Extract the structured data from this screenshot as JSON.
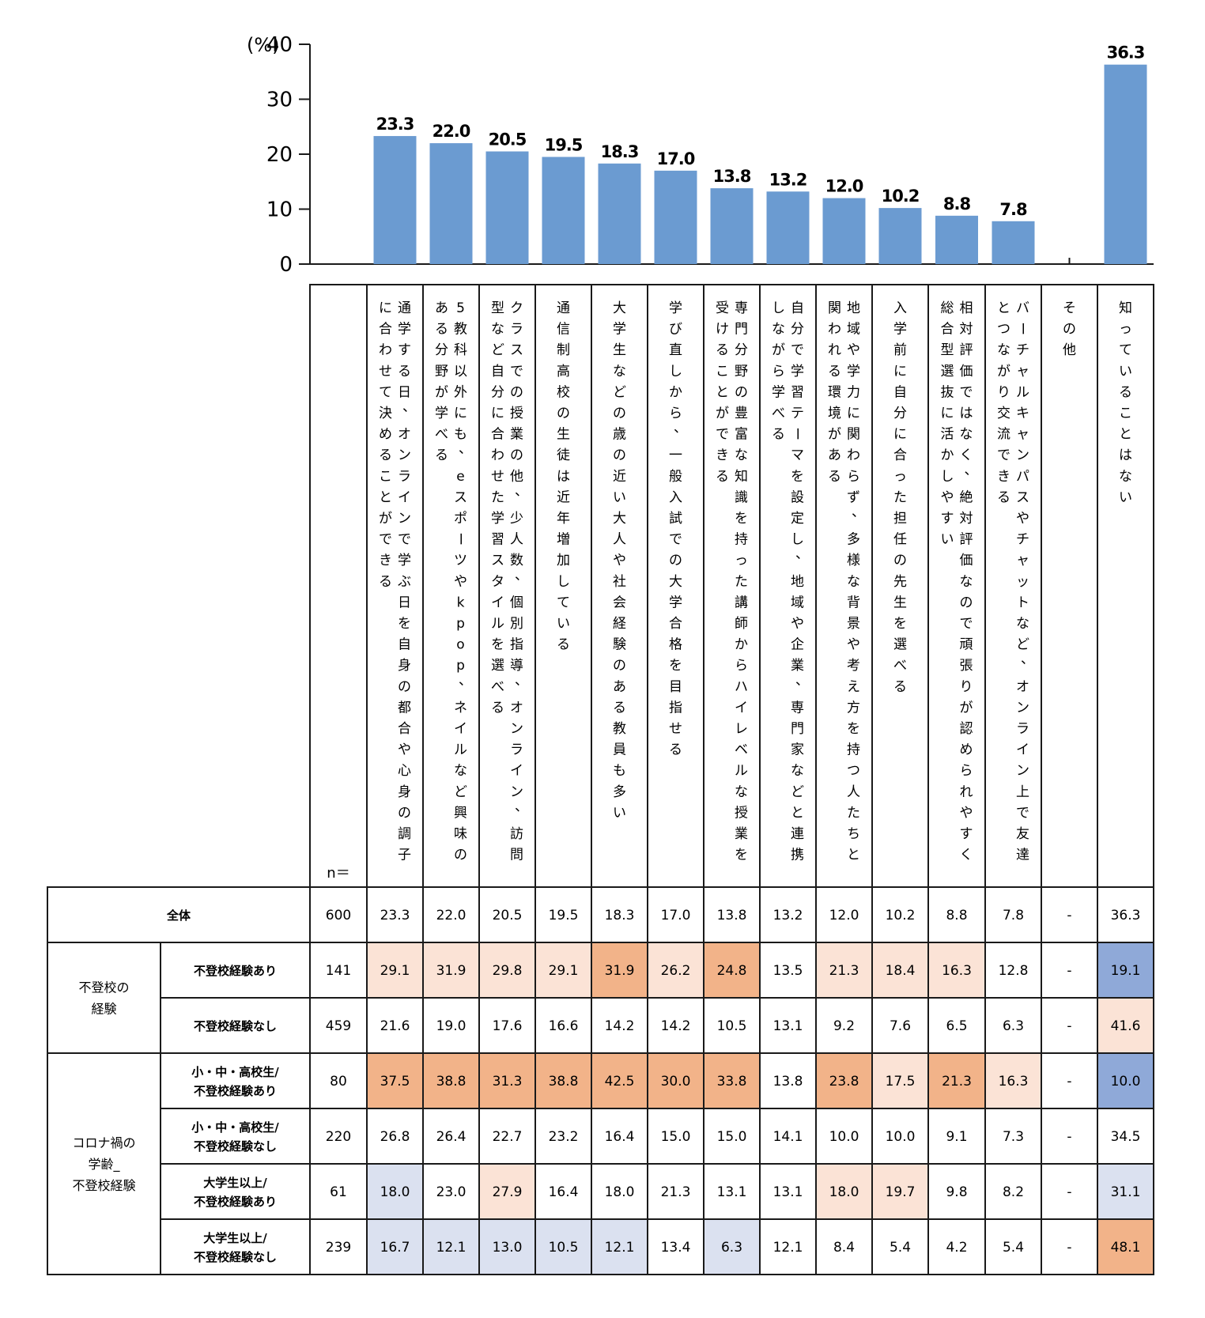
{
  "chart_data": {
    "type": "bar",
    "y_unit_label": "(%)",
    "y_ticks": [
      "0",
      "10",
      "20",
      "30",
      "40"
    ],
    "ylim": [
      0,
      40
    ],
    "grid": false,
    "categories": [
      "通学する日、オンラインで学ぶ日を自身の都合や心身の調子に合わせて決めることができる",
      "5教科以外にも、eスポーツやkpop、ネイルなど興味のある分野が学べる",
      "クラスでの授業の他、少人数、個別指導、オンライン、訪問型など自分に合わせた学習スタイルを選べる",
      "通信制高校の生徒は近年増加している",
      "大学生などの歳の近い大人や社会経験のある教員も多い",
      "学び直しから、一般入試での大学合格を目指せる",
      "専門分野の豊富な知識を持った講師からハイレベルな授業を受けることができる",
      "自分で学習テーマを設定し、地域や企業、専門家などと連携しながら学べる",
      "地域や学力に関わらず、多様な背景や考え方を持つ人たちと関われる環境がある",
      "入学前に自分に合った担任の先生を選べる",
      "相対評価ではなく、絶対評価なので頑張りが認められやすく総合型選抜に活かしやすい",
      "バーチャルキャンパスやチャットなど、オンライン上で友達とつながり交流できる",
      "その他",
      "知っていることはない"
    ],
    "values": [
      23.3,
      22.0,
      20.5,
      19.5,
      18.3,
      17.0,
      13.8,
      13.2,
      12.0,
      10.2,
      8.8,
      7.8,
      null,
      36.3
    ],
    "value_labels": [
      "23.3",
      "22.0",
      "20.5",
      "19.5",
      "18.3",
      "17.0",
      "13.8",
      "13.2",
      "12.0",
      "10.2",
      "8.8",
      "7.8",
      "",
      "36.3"
    ],
    "bar_color": "#6b9bd1",
    "table": {
      "n_header": "n＝",
      "groups": [
        {
          "label": "",
          "rows": [
            0
          ]
        },
        {
          "label": "不登校の\n経験",
          "rows": [
            1,
            2
          ]
        },
        {
          "label": "コロナ禍の\n学齢_\n不登校経験",
          "rows": [
            3,
            4,
            5,
            6
          ]
        }
      ],
      "rows": [
        {
          "label": "全体",
          "n": "600",
          "values": [
            "23.3",
            "22.0",
            "20.5",
            "19.5",
            "18.3",
            "17.0",
            "13.8",
            "13.2",
            "12.0",
            "10.2",
            "8.8",
            "7.8",
            "-",
            "36.3"
          ],
          "shade": [
            "",
            "",
            "",
            "",
            "",
            "",
            "",
            "",
            "",
            "",
            "",
            "",
            "",
            ""
          ]
        },
        {
          "label": "不登校経験あり",
          "n": "141",
          "values": [
            "29.1",
            "31.9",
            "29.8",
            "29.1",
            "31.9",
            "26.2",
            "24.8",
            "13.5",
            "21.3",
            "18.4",
            "16.3",
            "12.8",
            "-",
            "19.1"
          ],
          "shade": [
            "lo",
            "lo",
            "lo",
            "lo",
            "ho",
            "lo",
            "ho",
            "",
            "lo",
            "lo",
            "lo",
            "",
            "",
            "hb"
          ]
        },
        {
          "label": "不登校経験なし",
          "n": "459",
          "values": [
            "21.6",
            "19.0",
            "17.6",
            "16.6",
            "14.2",
            "14.2",
            "10.5",
            "13.1",
            "9.2",
            "7.6",
            "6.5",
            "6.3",
            "-",
            "41.6"
          ],
          "shade": [
            "",
            "",
            "",
            "",
            "",
            "",
            "",
            "",
            "",
            "",
            "",
            "",
            "",
            "lo"
          ]
        },
        {
          "label": "小・中・高校生/\n不登校経験あり",
          "n": "80",
          "values": [
            "37.5",
            "38.8",
            "31.3",
            "38.8",
            "42.5",
            "30.0",
            "33.8",
            "13.8",
            "23.8",
            "17.5",
            "21.3",
            "16.3",
            "-",
            "10.0"
          ],
          "shade": [
            "ho",
            "ho",
            "ho",
            "ho",
            "ho",
            "ho",
            "ho",
            "",
            "ho",
            "lo",
            "ho",
            "lo",
            "",
            "hb"
          ]
        },
        {
          "label": "小・中・高校生/\n不登校経験なし",
          "n": "220",
          "values": [
            "26.8",
            "26.4",
            "22.7",
            "23.2",
            "16.4",
            "15.0",
            "15.0",
            "14.1",
            "10.0",
            "10.0",
            "9.1",
            "7.3",
            "-",
            "34.5"
          ],
          "shade": [
            "",
            "",
            "",
            "",
            "",
            "",
            "",
            "",
            "",
            "",
            "",
            "",
            "",
            ""
          ]
        },
        {
          "label": "大学生以上/\n不登校経験あり",
          "n": "61",
          "values": [
            "18.0",
            "23.0",
            "27.9",
            "16.4",
            "18.0",
            "21.3",
            "13.1",
            "13.1",
            "18.0",
            "19.7",
            "9.8",
            "8.2",
            "-",
            "31.1"
          ],
          "shade": [
            "lb",
            "",
            "lo",
            "",
            "",
            "",
            "",
            "",
            "lo",
            "lo",
            "",
            "",
            "",
            "lb"
          ]
        },
        {
          "label": "大学生以上/\n不登校経験なし",
          "n": "239",
          "values": [
            "16.7",
            "12.1",
            "13.0",
            "10.5",
            "12.1",
            "13.4",
            "6.3",
            "12.1",
            "8.4",
            "5.4",
            "4.2",
            "5.4",
            "-",
            "48.1"
          ],
          "shade": [
            "lb",
            "lb",
            "lb",
            "lb",
            "lb",
            "",
            "lb",
            "",
            "",
            "",
            "",
            "",
            "",
            "ho"
          ]
        }
      ]
    }
  },
  "colors": {
    "shade_lo": "#fbe3d6",
    "shade_ho": "#f2b389",
    "shade_lb": "#dbe1f0",
    "shade_hb": "#8fa9d8",
    "line": "#1a1a1a"
  }
}
